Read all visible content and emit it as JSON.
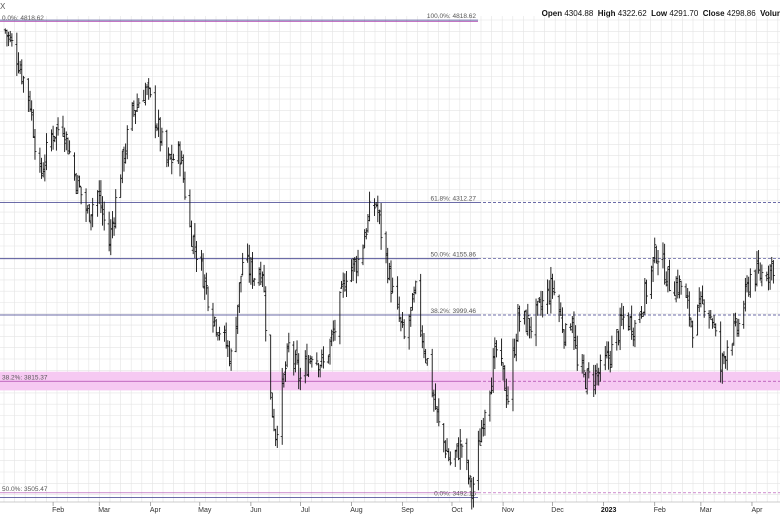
{
  "header": {
    "symbol_fragment": "X",
    "open_label": "Open",
    "open": "4304.88",
    "high_label": "High",
    "high": "4322.62",
    "low_label": "Low",
    "low": "4291.70",
    "close_label": "Close",
    "close": "4298.86",
    "volume_label": "Volur"
  },
  "chart_data": {
    "type": "ohlc",
    "price_range": [
      3480,
      4830
    ],
    "grid": true,
    "x_tick_labels": [
      "Feb",
      "Mar",
      "Apr",
      "May",
      "Jun",
      "Jul",
      "Aug",
      "Sep",
      "Oct",
      "Nov",
      "Dec",
      "2023",
      "Feb",
      "Mar",
      "Apr"
    ],
    "fib_levels": [
      {
        "label": "100.0%: 4818.62",
        "value": 4818.62,
        "side": "upper"
      },
      {
        "label": "61.8%: 4312.27",
        "value": 4312.27,
        "side": "upper"
      },
      {
        "label": "50.0%: 4155.86",
        "value": 4155.86,
        "side": "upper"
      },
      {
        "label": "38.2%: 3999.46",
        "value": 3999.46,
        "side": "upper"
      },
      {
        "label": "0.0%: 3492.16",
        "value": 3492.16,
        "side": "upper"
      },
      {
        "label": "0.0%: 4818.62",
        "value": 4818.62,
        "side": "lower"
      },
      {
        "label": "38.2%: 3815.37",
        "value": 3815.37,
        "side": "lower"
      },
      {
        "label": "50.0%: 3505.47",
        "value": 3505.47,
        "side": "lower"
      }
    ],
    "highlight_band": {
      "from": 3790,
      "to": 3842,
      "color": "#f6c9f2"
    },
    "price_path": [
      [
        "2022-01-03",
        4790
      ],
      [
        "2022-01-10",
        4720
      ],
      [
        "2022-01-18",
        4590
      ],
      [
        "2022-01-24",
        4380
      ],
      [
        "2022-01-31",
        4500
      ],
      [
        "2022-02-07",
        4530
      ],
      [
        "2022-02-14",
        4390
      ],
      [
        "2022-02-22",
        4280
      ],
      [
        "2022-02-28",
        4340
      ],
      [
        "2022-03-07",
        4200
      ],
      [
        "2022-03-14",
        4400
      ],
      [
        "2022-03-21",
        4560
      ],
      [
        "2022-03-29",
        4630
      ],
      [
        "2022-04-04",
        4550
      ],
      [
        "2022-04-11",
        4420
      ],
      [
        "2022-04-19",
        4450
      ],
      [
        "2022-04-25",
        4240
      ],
      [
        "2022-05-02",
        4130
      ],
      [
        "2022-05-09",
        4000
      ],
      [
        "2022-05-16",
        3930
      ],
      [
        "2022-05-20",
        3880
      ],
      [
        "2022-05-27",
        4150
      ],
      [
        "2022-06-03",
        4110
      ],
      [
        "2022-06-08",
        4130
      ],
      [
        "2022-06-13",
        3760
      ],
      [
        "2022-06-16",
        3670
      ],
      [
        "2022-06-24",
        3910
      ],
      [
        "2022-07-01",
        3820
      ],
      [
        "2022-07-08",
        3900
      ],
      [
        "2022-07-15",
        3860
      ],
      [
        "2022-07-22",
        3960
      ],
      [
        "2022-07-29",
        4120
      ],
      [
        "2022-08-05",
        4150
      ],
      [
        "2022-08-12",
        4280
      ],
      [
        "2022-08-16",
        4310
      ],
      [
        "2022-08-19",
        4230
      ],
      [
        "2022-08-26",
        4060
      ],
      [
        "2022-09-02",
        3930
      ],
      [
        "2022-09-09",
        4060
      ],
      [
        "2022-09-13",
        3940
      ],
      [
        "2022-09-16",
        3870
      ],
      [
        "2022-09-23",
        3690
      ],
      [
        "2022-09-30",
        3590
      ],
      [
        "2022-10-07",
        3640
      ],
      [
        "2022-10-13",
        3500
      ],
      [
        "2022-10-21",
        3750
      ],
      [
        "2022-10-28",
        3900
      ],
      [
        "2022-11-04",
        3770
      ],
      [
        "2022-11-10",
        3990
      ],
      [
        "2022-11-18",
        3970
      ],
      [
        "2022-11-25",
        4030
      ],
      [
        "2022-12-01",
        4080
      ],
      [
        "2022-12-09",
        3940
      ],
      [
        "2022-12-13",
        4000
      ],
      [
        "2022-12-16",
        3850
      ],
      [
        "2022-12-22",
        3820
      ],
      [
        "2022-12-30",
        3840
      ],
      [
        "2023-01-06",
        3900
      ],
      [
        "2023-01-13",
        3990
      ],
      [
        "2023-01-20",
        3970
      ],
      [
        "2023-01-27",
        4070
      ],
      [
        "2023-02-02",
        4180
      ],
      [
        "2023-02-10",
        4090
      ],
      [
        "2023-02-17",
        4080
      ],
      [
        "2023-02-24",
        3970
      ],
      [
        "2023-03-03",
        4040
      ],
      [
        "2023-03-08",
        3990
      ],
      [
        "2023-03-13",
        3850
      ],
      [
        "2023-03-17",
        3920
      ],
      [
        "2023-03-24",
        3970
      ],
      [
        "2023-03-31",
        4110
      ],
      [
        "2023-04-06",
        4110
      ],
      [
        "2023-04-14",
        4140
      ]
    ]
  }
}
